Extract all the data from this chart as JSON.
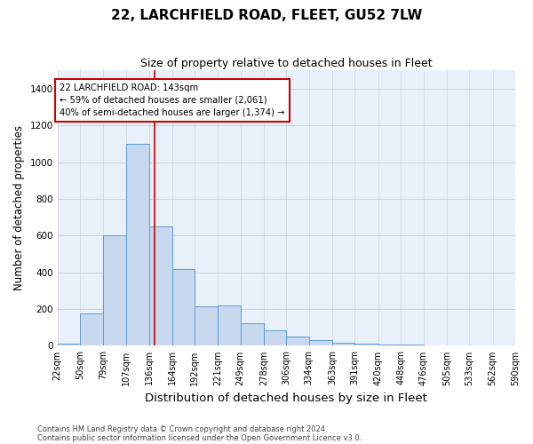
{
  "title": "22, LARCHFIELD ROAD, FLEET, GU52 7LW",
  "subtitle": "Size of property relative to detached houses in Fleet",
  "xlabel": "Distribution of detached houses by size in Fleet",
  "ylabel": "Number of detached properties",
  "bar_color": "#c8d9ef",
  "bar_edge_color": "#5b9bd5",
  "grid_color": "#cccccc",
  "background_color": "#e8f0fa",
  "annotation_text": "22 LARCHFIELD ROAD: 143sqm\n← 59% of detached houses are smaller (2,061)\n40% of semi-detached houses are larger (1,374) →",
  "property_line_x": 143,
  "property_line_color": "#cc0000",
  "ylim": [
    0,
    1500
  ],
  "yticks": [
    0,
    200,
    400,
    600,
    800,
    1000,
    1200,
    1400
  ],
  "bin_edges": [
    22,
    50,
    79,
    107,
    136,
    164,
    192,
    221,
    249,
    278,
    306,
    334,
    363,
    391,
    420,
    448,
    476,
    505,
    533,
    562,
    590
  ],
  "bin_counts": [
    10,
    175,
    600,
    1100,
    650,
    420,
    215,
    220,
    125,
    85,
    50,
    30,
    18,
    12,
    8,
    5,
    4,
    3,
    2,
    2
  ],
  "footer_text": "Contains HM Land Registry data © Crown copyright and database right 2024.\nContains public sector information licensed under the Open Government Licence v3.0.",
  "title_fontsize": 11,
  "subtitle_fontsize": 9,
  "tick_label_fontsize": 7,
  "ylabel_fontsize": 8.5,
  "xlabel_fontsize": 9.5,
  "footer_fontsize": 6
}
